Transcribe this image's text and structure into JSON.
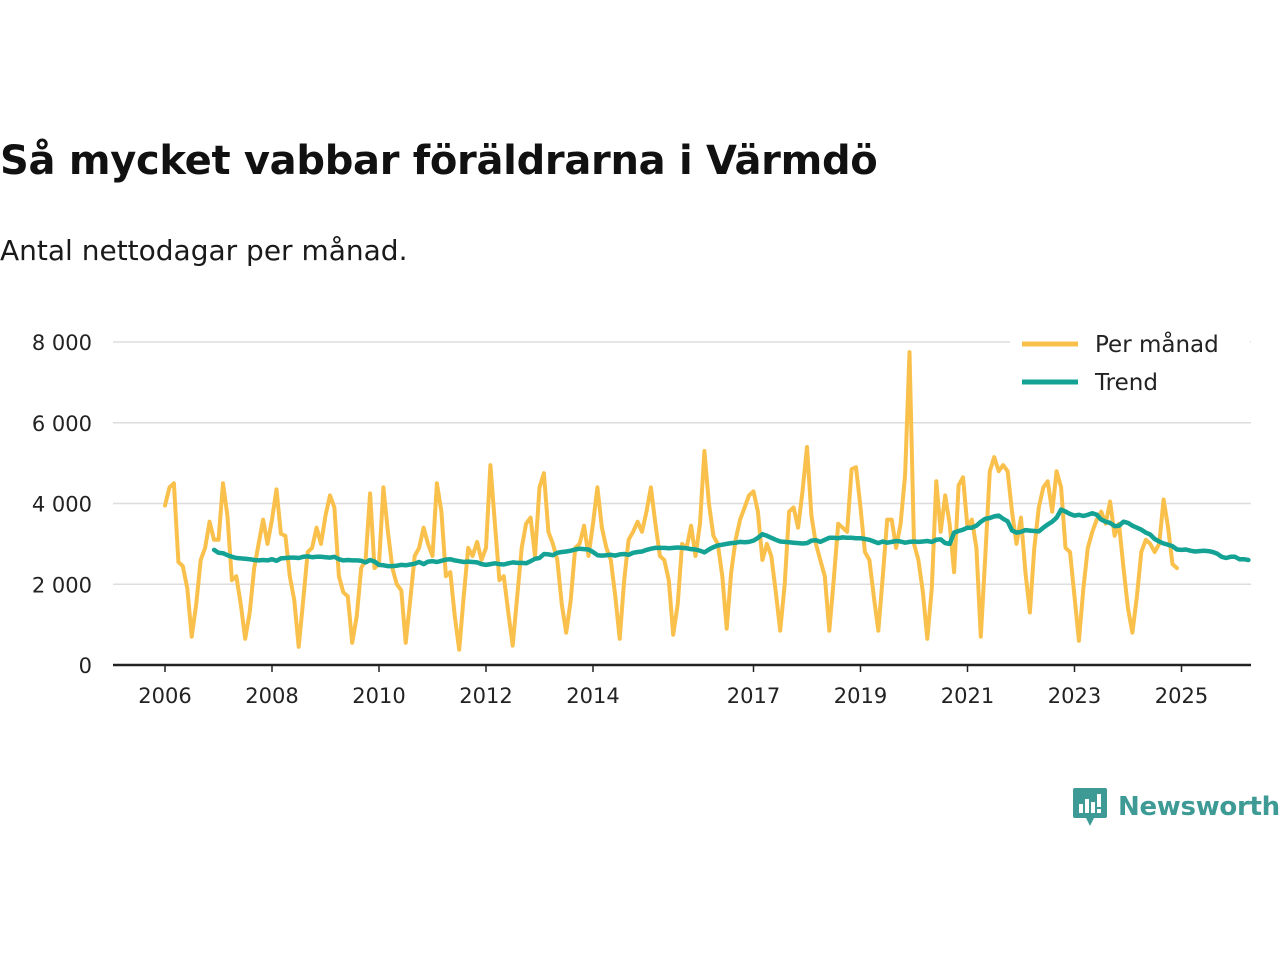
{
  "title": "Så mycket vabbar föräldrarna i Värmdö",
  "subtitle": "Antal nettodagar per månad.",
  "brand": {
    "name": "Newsworthy",
    "color": "#3d9a94"
  },
  "chart_data": {
    "type": "line",
    "title": "Så mycket vabbar föräldrarna i Värmdö",
    "subtitle": "Antal nettodagar per månad.",
    "xlabel": "",
    "ylabel": "",
    "xlim": [
      2006.0,
      2025.6
    ],
    "ylim": [
      0,
      8000
    ],
    "yticks": [
      0,
      2000,
      4000,
      6000,
      8000
    ],
    "ytick_labels": [
      "0",
      "2 000",
      "4 000",
      "6 000",
      "8 000"
    ],
    "xticks": [
      2006,
      2008,
      2010,
      2012,
      2014,
      2017,
      2019,
      2021,
      2023,
      2025
    ],
    "xtick_labels": [
      "2006",
      "2008",
      "2010",
      "2012",
      "2014",
      "2017",
      "2019",
      "2021",
      "2023",
      "2025"
    ],
    "grid": true,
    "legend_position": "top-right",
    "colors": {
      "monthly": "#f9c04c",
      "trend": "#13a294",
      "grid": "#dddddd",
      "axis": "#222222"
    },
    "series": [
      {
        "name": "Per månad",
        "x_start": 2006.0,
        "step": 0.08333,
        "values": [
          3950,
          4400,
          4500,
          2550,
          2450,
          1900,
          700,
          1500,
          2600,
          2900,
          3550,
          3100,
          3100,
          4500,
          3700,
          2100,
          2200,
          1500,
          650,
          1300,
          2400,
          3000,
          3600,
          3000,
          3600,
          4350,
          3250,
          3200,
          2200,
          1600,
          450,
          1600,
          2800,
          2900,
          3400,
          3000,
          3700,
          4200,
          3900,
          2200,
          1800,
          1700,
          550,
          1200,
          2400,
          2600,
          4250,
          2400,
          2500,
          4400,
          3300,
          2400,
          2000,
          1850,
          550,
          1600,
          2700,
          2900,
          3400,
          3000,
          2700,
          4500,
          3800,
          2200,
          2300,
          1200,
          380,
          1700,
          2900,
          2700,
          3050,
          2600,
          2900,
          4950,
          3500,
          2100,
          2200,
          1300,
          480,
          1700,
          2900,
          3500,
          3650,
          2700,
          4400,
          4750,
          3300,
          3000,
          2600,
          1500,
          800,
          1600,
          2900,
          3000,
          3450,
          2700,
          3500,
          4400,
          3400,
          2900,
          2600,
          1700,
          650,
          2100,
          3100,
          3300,
          3550,
          3300,
          3800,
          4400,
          3500,
          2700,
          2600,
          2100,
          750,
          1500,
          3000,
          2900,
          3450,
          2700,
          3500,
          5300,
          4000,
          3200,
          3000,
          2200,
          900,
          2300,
          3100,
          3600,
          3900,
          4200,
          4300,
          3800,
          2600,
          3000,
          2700,
          1800,
          850,
          2000,
          3800,
          3900,
          3400,
          4300,
          5400,
          3700,
          3000,
          2600,
          2200,
          850,
          2100,
          3500,
          3400,
          3300,
          4850,
          4900,
          3900,
          2800,
          2600,
          1700,
          850,
          2200,
          3600,
          3600,
          2900,
          3500,
          4700,
          7750,
          3000,
          2600,
          1800,
          650,
          1900,
          4550,
          3300,
          4200,
          3500,
          2300,
          4450,
          4650,
          3400,
          3600,
          2900,
          700,
          2700,
          4800,
          5150,
          4800,
          4950,
          4800,
          3800,
          3000,
          3650,
          2300,
          1300,
          2900,
          3900,
          4400,
          4550,
          3800,
          4800,
          4400,
          2900,
          2800,
          1700,
          600,
          1900,
          2900,
          3300,
          3600,
          3800,
          3500,
          4050,
          3200,
          3500,
          2400,
          1400,
          800,
          1700,
          2800,
          3100,
          3000,
          2800,
          3000,
          4100,
          3400,
          2500,
          2400
        ]
      },
      {
        "name": "Trend",
        "x_start": 2006.917,
        "step": 0.08333,
        "values": [
          2850,
          2780,
          2770,
          2720,
          2680,
          2650,
          2640,
          2630,
          2620,
          2600,
          2590,
          2600,
          2590,
          2620,
          2580,
          2640,
          2650,
          2660,
          2660,
          2650,
          2680,
          2690,
          2670,
          2680,
          2680,
          2670,
          2660,
          2680,
          2620,
          2590,
          2600,
          2590,
          2590,
          2580,
          2540,
          2600,
          2560,
          2480,
          2470,
          2450,
          2450,
          2460,
          2480,
          2470,
          2490,
          2510,
          2550,
          2500,
          2560,
          2570,
          2550,
          2580,
          2610,
          2620,
          2590,
          2570,
          2550,
          2560,
          2550,
          2540,
          2500,
          2480,
          2500,
          2520,
          2500,
          2490,
          2520,
          2540,
          2530,
          2530,
          2520,
          2570,
          2630,
          2650,
          2750,
          2740,
          2720,
          2780,
          2800,
          2810,
          2830,
          2860,
          2880,
          2870,
          2860,
          2800,
          2720,
          2710,
          2720,
          2730,
          2710,
          2740,
          2750,
          2730,
          2780,
          2800,
          2810,
          2850,
          2880,
          2900,
          2900,
          2900,
          2890,
          2900,
          2910,
          2900,
          2890,
          2870,
          2860,
          2830,
          2790,
          2860,
          2920,
          2960,
          2980,
          3000,
          3020,
          3030,
          3050,
          3040,
          3050,
          3080,
          3150,
          3240,
          3200,
          3150,
          3100,
          3060,
          3050,
          3040,
          3030,
          3020,
          3010,
          3020,
          3080,
          3090,
          3050,
          3100,
          3150,
          3150,
          3140,
          3160,
          3150,
          3150,
          3140,
          3140,
          3120,
          3100,
          3060,
          3020,
          3060,
          3030,
          3050,
          3070,
          3060,
          3030,
          3050,
          3060,
          3050,
          3060,
          3070,
          3050,
          3100,
          3110,
          3020,
          3000,
          3280,
          3320,
          3350,
          3400,
          3400,
          3450,
          3550,
          3620,
          3640,
          3680,
          3700,
          3620,
          3560,
          3330,
          3280,
          3300,
          3340,
          3330,
          3320,
          3310,
          3400,
          3480,
          3550,
          3650,
          3850,
          3800,
          3740,
          3700,
          3720,
          3690,
          3720,
          3760,
          3720,
          3600,
          3550,
          3520,
          3440,
          3450,
          3550,
          3520,
          3450,
          3400,
          3350,
          3280,
          3230,
          3120,
          3060,
          3010,
          2980,
          2940,
          2860,
          2850,
          2860,
          2830,
          2810,
          2820,
          2830,
          2820,
          2800,
          2760,
          2680,
          2650,
          2680,
          2680,
          2620,
          2620,
          2600
        ]
      }
    ]
  }
}
